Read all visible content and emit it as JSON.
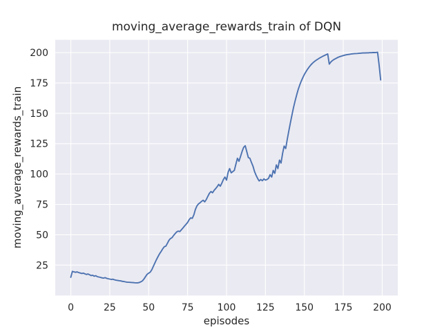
{
  "chart_data": {
    "type": "line",
    "title": "moving_average_rewards_train of DQN",
    "xlabel": "episodes",
    "ylabel": "moving_average_rewards_train",
    "xlim": [
      -10,
      210
    ],
    "ylim": [
      0,
      210.5
    ],
    "xticks": [
      0,
      25,
      50,
      75,
      100,
      125,
      150,
      175,
      200
    ],
    "yticks": [
      25,
      50,
      75,
      100,
      125,
      150,
      175,
      200
    ],
    "grid": true,
    "legend_position": "none",
    "style": "seaborn-darkgrid",
    "colors": {
      "line": "#4c72b0",
      "plot_bg": "#eaeaf2",
      "grid": "#ffffff",
      "figure_bg": "#ffffff",
      "text": "#262626"
    },
    "series": [
      {
        "name": "moving_average_rewards_train",
        "x": [
          0,
          1,
          2,
          3,
          4,
          5,
          6,
          7,
          8,
          9,
          10,
          11,
          12,
          13,
          14,
          15,
          16,
          17,
          18,
          19,
          20,
          21,
          22,
          23,
          24,
          25,
          26,
          27,
          28,
          29,
          30,
          31,
          32,
          33,
          34,
          35,
          36,
          37,
          38,
          39,
          40,
          41,
          42,
          43,
          44,
          45,
          46,
          47,
          48,
          49,
          50,
          51,
          52,
          53,
          54,
          55,
          56,
          57,
          58,
          59,
          60,
          61,
          62,
          63,
          64,
          65,
          66,
          67,
          68,
          69,
          70,
          71,
          72,
          73,
          74,
          75,
          76,
          77,
          78,
          79,
          80,
          81,
          82,
          83,
          84,
          85,
          86,
          87,
          88,
          89,
          90,
          91,
          92,
          93,
          94,
          95,
          96,
          97,
          98,
          99,
          100,
          101,
          102,
          103,
          104,
          105,
          106,
          107,
          108,
          109,
          110,
          111,
          112,
          113,
          114,
          115,
          116,
          117,
          118,
          119,
          120,
          121,
          122,
          123,
          124,
          125,
          126,
          127,
          128,
          129,
          130,
          131,
          132,
          133,
          134,
          135,
          136,
          137,
          138,
          139,
          140,
          141,
          142,
          143,
          144,
          145,
          146,
          147,
          148,
          149,
          150,
          151,
          152,
          153,
          154,
          155,
          156,
          157,
          158,
          159,
          160,
          161,
          162,
          163,
          164,
          165,
          166,
          167,
          168,
          169,
          170,
          171,
          172,
          173,
          174,
          175,
          176,
          177,
          178,
          179,
          180,
          181,
          182,
          183,
          184,
          185,
          186,
          187,
          188,
          189,
          190,
          191,
          192,
          193,
          194,
          195,
          196,
          197,
          198,
          199
        ],
        "y": [
          15.0,
          19.8,
          19.5,
          19.1,
          19.4,
          18.9,
          18.5,
          18.1,
          18.4,
          17.8,
          17.3,
          17.7,
          17.1,
          16.4,
          16.7,
          15.9,
          16.3,
          15.5,
          15.2,
          14.9,
          14.5,
          14.3,
          14.7,
          14.1,
          13.8,
          13.5,
          13.2,
          13.4,
          12.9,
          12.6,
          12.4,
          12.2,
          12.0,
          11.7,
          11.5,
          11.2,
          11.0,
          10.9,
          10.8,
          10.7,
          10.6,
          10.5,
          10.4,
          10.4,
          10.7,
          11.3,
          12.1,
          13.6,
          15.6,
          17.4,
          18.4,
          19.2,
          21.2,
          24.0,
          26.8,
          29.5,
          32.0,
          34.4,
          36.2,
          38.4,
          40.1,
          40.6,
          42.9,
          45.4,
          46.9,
          47.6,
          49.4,
          50.9,
          52.4,
          53.0,
          52.6,
          54.1,
          55.6,
          57.1,
          58.6,
          60.1,
          62.4,
          63.9,
          63.5,
          66.4,
          70.8,
          73.8,
          75.4,
          76.4,
          77.5,
          78.4,
          77.1,
          79.0,
          81.6,
          84.1,
          85.6,
          84.6,
          86.5,
          88.0,
          89.6,
          91.5,
          90.0,
          92.5,
          95.5,
          97.5,
          95.0,
          101.5,
          104.5,
          101.0,
          102.0,
          103.0,
          108.0,
          113.0,
          110.5,
          114.5,
          118.5,
          122.0,
          123.3,
          118.5,
          113.5,
          113.0,
          109.5,
          106.5,
          102.0,
          99.0,
          96.3,
          94.3,
          95.5,
          94.5,
          96.0,
          95.0,
          95.5,
          96.5,
          99.5,
          97.5,
          103.0,
          100.5,
          107.5,
          104.5,
          111.5,
          109.0,
          117.0,
          123.0,
          121.0,
          128.5,
          135.5,
          142.0,
          148.5,
          154.5,
          160.0,
          165.0,
          169.5,
          173.3,
          176.5,
          179.4,
          182.0,
          184.2,
          186.2,
          188.0,
          189.6,
          191.0,
          192.2,
          193.2,
          194.1,
          194.9,
          195.7,
          196.4,
          197.1,
          197.7,
          198.3,
          198.9,
          190.5,
          192.3,
          193.4,
          194.3,
          195.0,
          195.7,
          196.3,
          196.8,
          197.2,
          197.6,
          197.9,
          198.2,
          198.4,
          198.6,
          198.8,
          199.0,
          199.1,
          199.2,
          199.3,
          199.4,
          199.5,
          199.6,
          199.7,
          199.7,
          199.8,
          199.8,
          199.9,
          199.9,
          200.0,
          200.0,
          200.1,
          200.3,
          190.0,
          177.5
        ]
      }
    ]
  }
}
